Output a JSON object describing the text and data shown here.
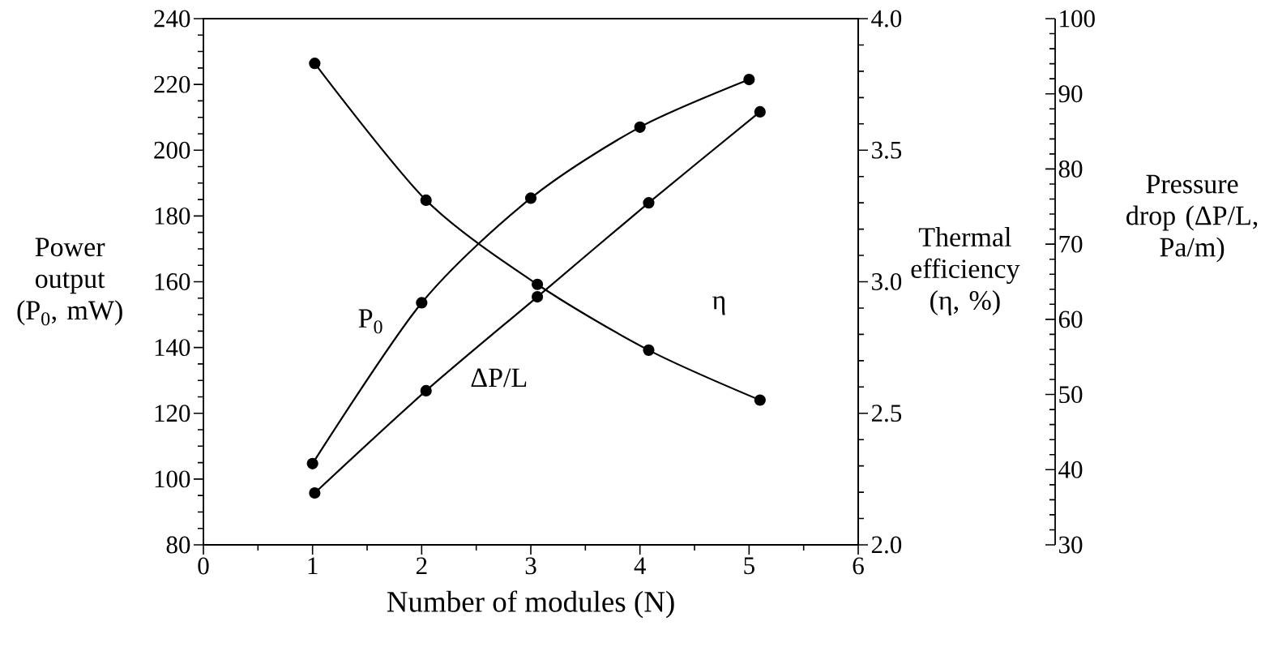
{
  "chart_data": {
    "type": "line",
    "xlabel": "Number of modules (N)",
    "ylabel": "Power output (P$_{0}$, mW)",
    "y2label": "Thermal efficiency (η, %)",
    "y3label": "Pressure drop (ΔP/L, Pa/m)",
    "xlim": [
      0,
      6
    ],
    "xticks": [
      0,
      1,
      2,
      3,
      4,
      5,
      6
    ],
    "ylim": [
      80,
      240
    ],
    "yticks": [
      80,
      100,
      120,
      140,
      160,
      180,
      200,
      220,
      240
    ],
    "y2lim": [
      2.0,
      4.0
    ],
    "y2ticks": [
      {
        "value": 2,
        "label": "2.0"
      },
      2.5,
      {
        "value": 3,
        "label": "3.0"
      },
      3.5,
      {
        "value": 4,
        "label": "4.0"
      }
    ],
    "y3lim": [
      30,
      100
    ],
    "y3ticks": [
      30,
      40,
      50,
      60,
      70,
      80,
      90,
      100
    ],
    "marker": "circle",
    "line_style": "solid",
    "series": [
      {
        "name": "P$_{0}$",
        "color": "#000000",
        "x": [
          1,
          2,
          3,
          4,
          5
        ],
        "values": [
          104.7,
          153.6,
          185.4,
          207.0,
          221.5
        ]
      },
      {
        "name": "η",
        "color": "#000000",
        "axis": "y2",
        "x": [
          1.02,
          2.04,
          3.06,
          4.08,
          5.1
        ],
        "values": [
          3.83,
          3.31,
          2.99,
          2.74,
          2.55
        ]
      },
      {
        "name": "ΔP/L",
        "color": "#000000",
        "axis": "y3",
        "x": [
          1.02,
          2.04,
          3.06,
          4.08,
          5.1
        ],
        "values": [
          36.9,
          50.5,
          63.0,
          75.5,
          87.6
        ]
      }
    ]
  }
}
